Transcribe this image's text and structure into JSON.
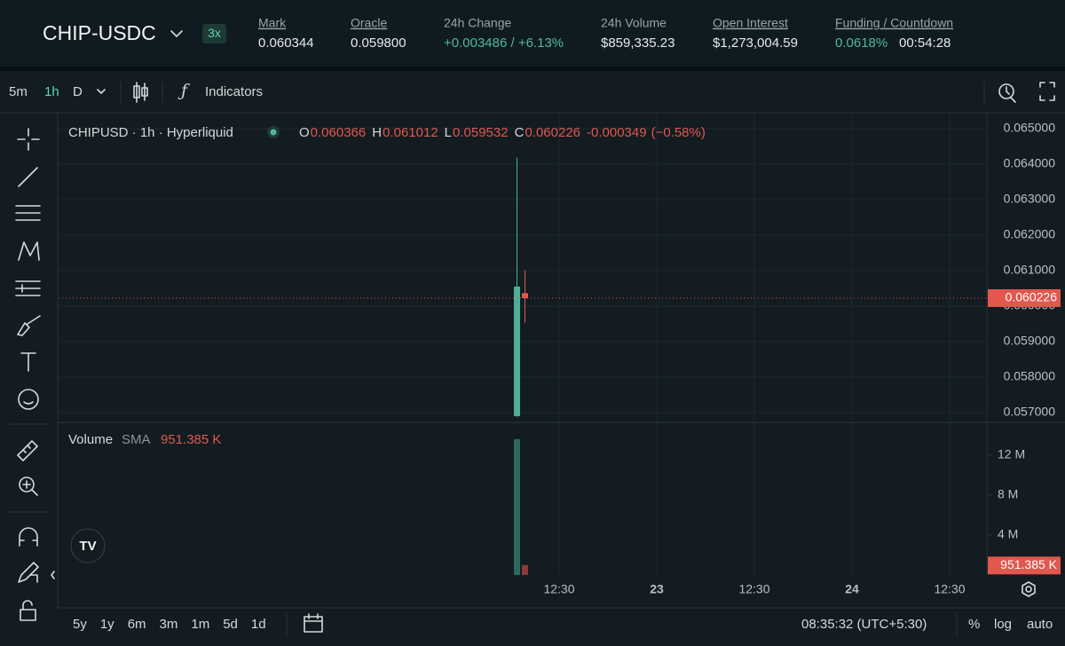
{
  "header": {
    "symbol": "CHIP-USDC",
    "leverage": "3x",
    "stats": [
      {
        "label": "Mark",
        "value": "0.060344"
      },
      {
        "label": "Oracle",
        "value": "0.059800"
      },
      {
        "label": "24h Change",
        "value": "+0.003486 / +6.13%"
      },
      {
        "label": "24h Volume",
        "value": "$859,335.23"
      },
      {
        "label": "Open Interest",
        "value": "$1,273,004.59"
      }
    ],
    "funding": {
      "label": "Funding / Countdown",
      "rate": "0.0618%",
      "countdown": "00:54:28"
    }
  },
  "toolbar": {
    "intervals": [
      "5m",
      "1h",
      "D"
    ],
    "indicators": "Indicators"
  },
  "chart_data": {
    "type": "candlestick",
    "title": "CHIPUSD · 1h · Hyperliquid",
    "ohlc_labels": [
      "O",
      "H",
      "L",
      "C"
    ],
    "change": -0.000349,
    "change_pct": "(−0.58%)",
    "candles": [
      {
        "open": 0.0569,
        "high": 0.06418,
        "low": 0.05688,
        "close": 0.06055
      },
      {
        "open": 0.060366,
        "high": 0.061012,
        "low": 0.059532,
        "close": 0.060226
      }
    ],
    "up_color": "#4fae98",
    "down_color": "#e2574e",
    "ylim": [
      0.05675,
      0.065425
    ],
    "yticks": [
      {
        "value": 0.057,
        "label": "0.057000"
      },
      {
        "value": 0.058,
        "label": "0.058000"
      },
      {
        "value": 0.059,
        "label": "0.059000"
      },
      {
        "value": 0.06,
        "label": "0.060000"
      },
      {
        "value": 0.061,
        "label": "0.061000"
      },
      {
        "value": 0.062,
        "label": "0.062000"
      },
      {
        "value": 0.063,
        "label": "0.063000"
      },
      {
        "value": 0.064,
        "label": "0.064000"
      },
      {
        "value": 0.065,
        "label": "0.065000"
      }
    ],
    "x_labels": [
      "12:30",
      "23",
      "12:30",
      "24",
      "12:30"
    ],
    "volume": {
      "title": "Volume",
      "sma_label": "SMA",
      "sma": {
        "value": 951385,
        "label": "951.385 K"
      },
      "values": [
        13600000,
        1000000
      ],
      "ylim": [
        0,
        15100000
      ],
      "yticks": [
        {
          "value": 4000000,
          "label": "4 M"
        },
        {
          "value": 8000000,
          "label": "8 M"
        },
        {
          "value": 12000000,
          "label": "12 M"
        }
      ]
    }
  },
  "footer": {
    "ranges": [
      "5y",
      "1y",
      "6m",
      "3m",
      "1m",
      "5d",
      "1d"
    ],
    "time": "08:35:32 (UTC+5:30)",
    "options": [
      "%",
      "log",
      "auto"
    ]
  }
}
